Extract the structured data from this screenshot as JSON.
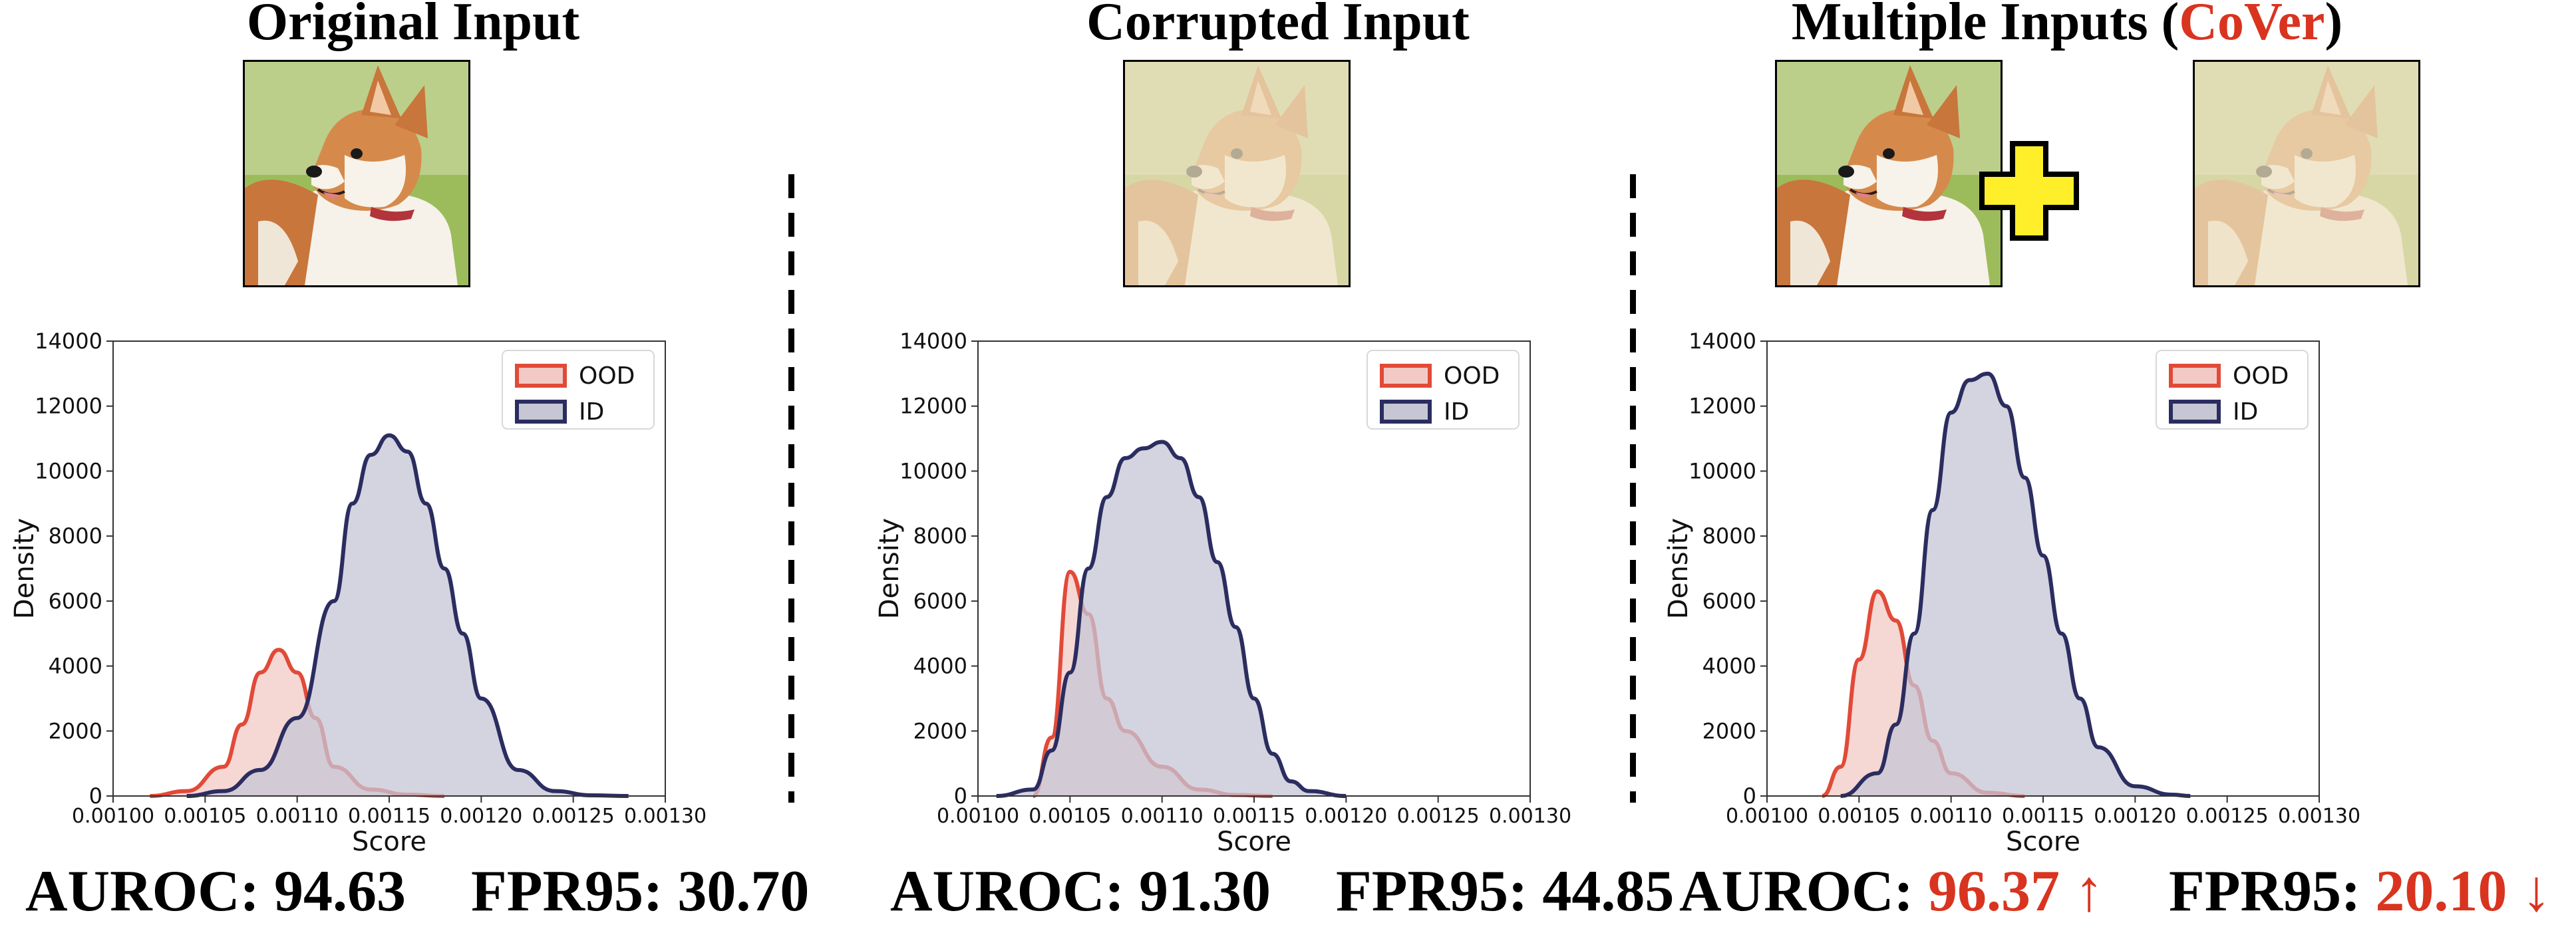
{
  "colors": {
    "ood_line": "#e14a38",
    "ood_fill": "#f2c9c5",
    "id_line": "#2b2d60",
    "id_fill": "#c6c6d5",
    "accent": "#d9341f",
    "plus_fill": "#ffef2b"
  },
  "panels": [
    {
      "title": "Original Input",
      "images": [
        {
          "kind": "corgi-photo",
          "faded": false
        }
      ],
      "auroc_label": "AUROC:",
      "auroc_value": "94.63",
      "fpr_label": "FPR95:",
      "fpr_value": "30.70"
    },
    {
      "title": "Corrupted Input",
      "images": [
        {
          "kind": "corgi-photo-corrupted",
          "faded": true
        }
      ],
      "auroc_label": "AUROC:",
      "auroc_value": "91.30",
      "fpr_label": "FPR95:",
      "fpr_value": "44.85"
    },
    {
      "title_prefix": "Multiple Inputs (",
      "title_accent": "CoVer",
      "title_suffix": ")",
      "images": [
        {
          "kind": "corgi-photo",
          "faded": false
        },
        {
          "kind": "corgi-photo-corrupted",
          "faded": true
        }
      ],
      "joiner_icon": "plus-icon",
      "auroc_label": "AUROC:",
      "auroc_value": "96.37 ↑",
      "fpr_label": "FPR95:",
      "fpr_value": "20.10 ↓"
    }
  ],
  "chart_data": [
    {
      "type": "area",
      "xlabel": "Score",
      "ylabel": "Density",
      "xlim": [
        0.001,
        0.0013
      ],
      "ylim": [
        0,
        14000
      ],
      "xticks": [
        "0.00100",
        "0.00105",
        "0.00110",
        "0.00115",
        "0.00120",
        "0.00125",
        "0.00130"
      ],
      "yticks": [
        "0",
        "2000",
        "4000",
        "6000",
        "8000",
        "10000",
        "12000",
        "14000"
      ],
      "grid": false,
      "legend_position": "top-right",
      "series": [
        {
          "name": "OOD",
          "x": [
            0.00102,
            0.00104,
            0.00106,
            0.00107,
            0.00108,
            0.00109,
            0.0011,
            0.00111,
            0.00112,
            0.00114,
            0.00116,
            0.00118
          ],
          "y": [
            0,
            150,
            900,
            2200,
            3800,
            4500,
            3800,
            2400,
            900,
            200,
            40,
            0
          ]
        },
        {
          "name": "ID",
          "x": [
            0.00104,
            0.00106,
            0.00108,
            0.0011,
            0.00112,
            0.00113,
            0.00114,
            0.00115,
            0.00116,
            0.00117,
            0.00118,
            0.00119,
            0.0012,
            0.00122,
            0.00124,
            0.00126,
            0.00128
          ],
          "y": [
            0,
            150,
            800,
            2400,
            6000,
            9000,
            10500,
            11100,
            10600,
            9000,
            7000,
            5000,
            3000,
            800,
            150,
            20,
            0
          ]
        }
      ]
    },
    {
      "type": "area",
      "xlabel": "Score",
      "ylabel": "Density",
      "xlim": [
        0.001,
        0.0013
      ],
      "ylim": [
        0,
        14000
      ],
      "xticks": [
        "0.00100",
        "0.00105",
        "0.00110",
        "0.00115",
        "0.00120",
        "0.00125",
        "0.00130"
      ],
      "yticks": [
        "0",
        "2000",
        "4000",
        "6000",
        "8000",
        "10000",
        "12000",
        "14000"
      ],
      "grid": false,
      "legend_position": "top-right",
      "series": [
        {
          "name": "OOD",
          "x": [
            0.00103,
            0.00104,
            0.00105,
            0.00106,
            0.00107,
            0.00108,
            0.0011,
            0.00112,
            0.00114,
            0.00116
          ],
          "y": [
            0,
            1800,
            6900,
            5600,
            3000,
            2000,
            900,
            200,
            30,
            0
          ]
        },
        {
          "name": "ID",
          "x": [
            0.00101,
            0.00103,
            0.00104,
            0.00105,
            0.00106,
            0.00107,
            0.00108,
            0.00109,
            0.0011,
            0.00111,
            0.00112,
            0.00113,
            0.00114,
            0.00115,
            0.00116,
            0.00117,
            0.00118,
            0.0012
          ],
          "y": [
            0,
            200,
            1400,
            3800,
            7000,
            9200,
            10400,
            10700,
            10900,
            10400,
            9200,
            7200,
            5200,
            3000,
            1300,
            450,
            150,
            0
          ]
        }
      ]
    },
    {
      "type": "area",
      "xlabel": "Score",
      "ylabel": "Density",
      "xlim": [
        0.001,
        0.0013
      ],
      "ylim": [
        0,
        14000
      ],
      "xticks": [
        "0.00100",
        "0.00105",
        "0.00110",
        "0.00115",
        "0.00120",
        "0.00125",
        "0.00130"
      ],
      "yticks": [
        "0",
        "2000",
        "4000",
        "6000",
        "8000",
        "10000",
        "12000",
        "14000"
      ],
      "grid": false,
      "legend_position": "top-right",
      "series": [
        {
          "name": "OOD",
          "x": [
            0.00103,
            0.00104,
            0.00105,
            0.00106,
            0.00107,
            0.00108,
            0.00109,
            0.0011,
            0.00112,
            0.00114
          ],
          "y": [
            0,
            900,
            4200,
            6300,
            5400,
            3400,
            1700,
            700,
            100,
            0
          ]
        },
        {
          "name": "ID",
          "x": [
            0.00104,
            0.00106,
            0.00107,
            0.00108,
            0.00109,
            0.0011,
            0.00111,
            0.00112,
            0.00113,
            0.00114,
            0.00115,
            0.00116,
            0.00117,
            0.00118,
            0.0012,
            0.00122,
            0.00123
          ],
          "y": [
            0,
            700,
            2200,
            5000,
            8800,
            11800,
            12800,
            13000,
            12000,
            9800,
            7400,
            5000,
            3000,
            1500,
            300,
            40,
            0
          ]
        }
      ]
    }
  ]
}
